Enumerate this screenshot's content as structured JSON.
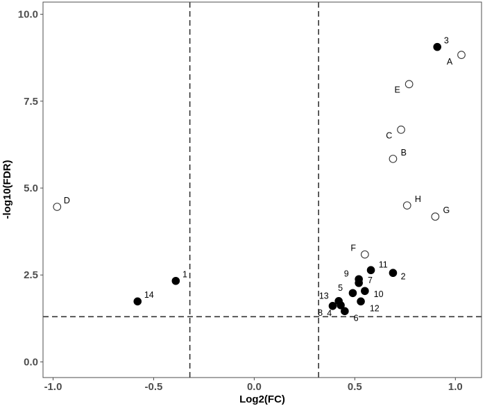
{
  "chart_data": {
    "type": "scatter",
    "xlabel": "Log2(FC)",
    "ylabel": "-log10(FDR)",
    "xlim": [
      -1.05,
      1.13
    ],
    "ylim": [
      -0.45,
      10.35
    ],
    "xticks": [
      -1.0,
      -0.5,
      0.0,
      0.5,
      1.0
    ],
    "xtick_labels": [
      "-1.0",
      "-0.5",
      "0.0",
      "0.5",
      "1.0"
    ],
    "yticks": [
      0.0,
      2.5,
      5.0,
      7.5,
      10.0
    ],
    "ytick_labels": [
      "0.0",
      "2.5",
      "5.0",
      "7.5",
      "10.0"
    ],
    "grid": false,
    "threshold_lines": {
      "x": [
        -0.32,
        0.32
      ],
      "y": [
        1.3
      ]
    },
    "colors": {
      "filled": "#000000",
      "open_fill": "#ffffff",
      "open_stroke": "#333333",
      "dash": "#333333",
      "frame": "#4d4d4d"
    },
    "series": [
      {
        "style": "filled",
        "points": [
          {
            "label": "1",
            "x": -0.39,
            "y": 2.33,
            "label_dx": 1.2,
            "label_dy": -1.2
          },
          {
            "label": "2",
            "x": 0.69,
            "y": 2.56,
            "label_dx": 1.4,
            "label_dy": 0.6
          },
          {
            "label": "3",
            "x": 0.91,
            "y": 9.06,
            "label_dx": 1.2,
            "label_dy": -1.2
          },
          {
            "label": "4",
            "x": 0.43,
            "y": 1.63,
            "label_dx": -1.6,
            "label_dy": 1.4
          },
          {
            "label": "5",
            "x": 0.49,
            "y": 1.98,
            "label_dx": -1.8,
            "label_dy": -1.0
          },
          {
            "label": "6",
            "x": 0.45,
            "y": 1.46,
            "label_dx": 1.6,
            "label_dy": 1.2
          },
          {
            "label": "7",
            "x": 0.52,
            "y": 2.27,
            "label_dx": 1.6,
            "label_dy": -0.5
          },
          {
            "label": "8",
            "x": 0.39,
            "y": 1.61,
            "label_dx": -1.8,
            "label_dy": 1.2
          },
          {
            "label": "9",
            "x": 0.52,
            "y": 2.38,
            "label_dx": -1.8,
            "label_dy": -1.0
          },
          {
            "label": "10",
            "x": 0.55,
            "y": 2.04,
            "label_dx": 1.6,
            "label_dy": 0.5
          },
          {
            "label": "11",
            "x": 0.58,
            "y": 2.64,
            "label_dx": 1.4,
            "label_dy": -1.0
          },
          {
            "label": "12",
            "x": 0.53,
            "y": 1.74,
            "label_dx": 1.6,
            "label_dy": 1.2
          },
          {
            "label": "13",
            "x": 0.42,
            "y": 1.75,
            "label_dx": -1.8,
            "label_dy": -1.0
          },
          {
            "label": "14",
            "x": -0.58,
            "y": 1.74,
            "label_dx": 1.2,
            "label_dy": -1.2
          }
        ]
      },
      {
        "style": "open",
        "points": [
          {
            "label": "A",
            "x": 1.03,
            "y": 8.83,
            "label_dx": -1.6,
            "label_dy": 1.2
          },
          {
            "label": "B",
            "x": 0.69,
            "y": 5.84,
            "label_dx": 1.4,
            "label_dy": -1.2
          },
          {
            "label": "C",
            "x": 0.73,
            "y": 6.68,
            "label_dx": -1.6,
            "label_dy": 1.0
          },
          {
            "label": "D",
            "x": -0.98,
            "y": 4.46,
            "label_dx": 1.2,
            "label_dy": -1.2
          },
          {
            "label": "E",
            "x": 0.77,
            "y": 7.99,
            "label_dx": -1.6,
            "label_dy": 1.0
          },
          {
            "label": "F",
            "x": 0.55,
            "y": 3.09,
            "label_dx": -1.6,
            "label_dy": -1.2
          },
          {
            "label": "G",
            "x": 0.9,
            "y": 4.18,
            "label_dx": 1.4,
            "label_dy": -1.2
          },
          {
            "label": "H",
            "x": 0.76,
            "y": 4.5,
            "label_dx": 1.4,
            "label_dy": -1.2
          }
        ]
      }
    ]
  }
}
